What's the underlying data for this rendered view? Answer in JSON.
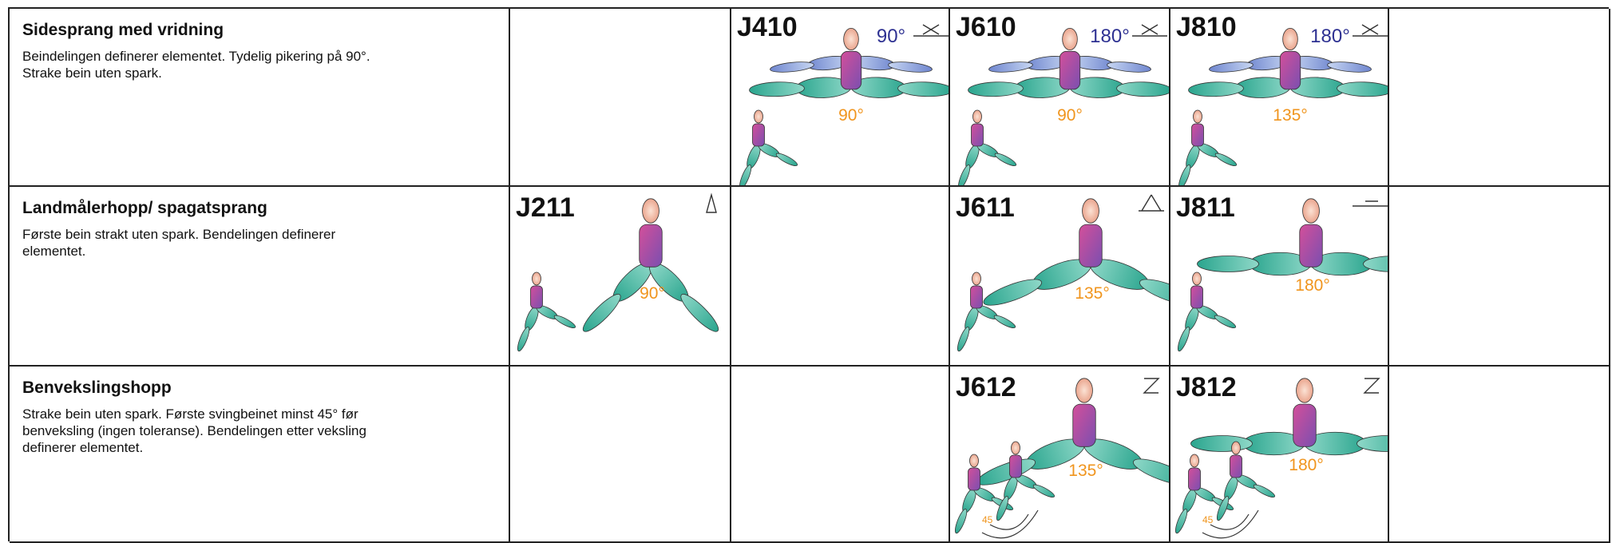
{
  "rows": [
    {
      "title": "Sidesprang med vridning",
      "description": [
        "Beindelingen definerer elementet. Tydelig pikering på 90°.",
        "Strake bein uten spark."
      ],
      "cells": [
        null,
        {
          "code": "J410",
          "turn": "90°",
          "angle": "90°"
        },
        {
          "code": "J610",
          "turn": "180°",
          "angle": "90°"
        },
        {
          "code": "J810",
          "turn": "180°",
          "angle": "135°"
        },
        null
      ]
    },
    {
      "title": "Landmålerhopp/ spagatsprang",
      "description": [
        "Første bein strakt uten spark. Bendelingen definerer",
        "elementet."
      ],
      "cells": [
        {
          "code": "J211",
          "angle": "90°"
        },
        null,
        {
          "code": "J611",
          "angle": "135°"
        },
        {
          "code": "J811",
          "angle": "180°"
        },
        null
      ]
    },
    {
      "title": "Benvekslingshopp",
      "description": [
        "Strake bein uten spark. Første svingbeinet minst 45° før",
        "benveksling (ingen toleranse). Bendelingen etter veksling",
        "definerer elementet."
      ],
      "cells": [
        null,
        null,
        {
          "code": "J612",
          "angle": "135°",
          "swing": "45"
        },
        {
          "code": "J812",
          "angle": "180°",
          "swing": "45"
        },
        null
      ]
    }
  ]
}
